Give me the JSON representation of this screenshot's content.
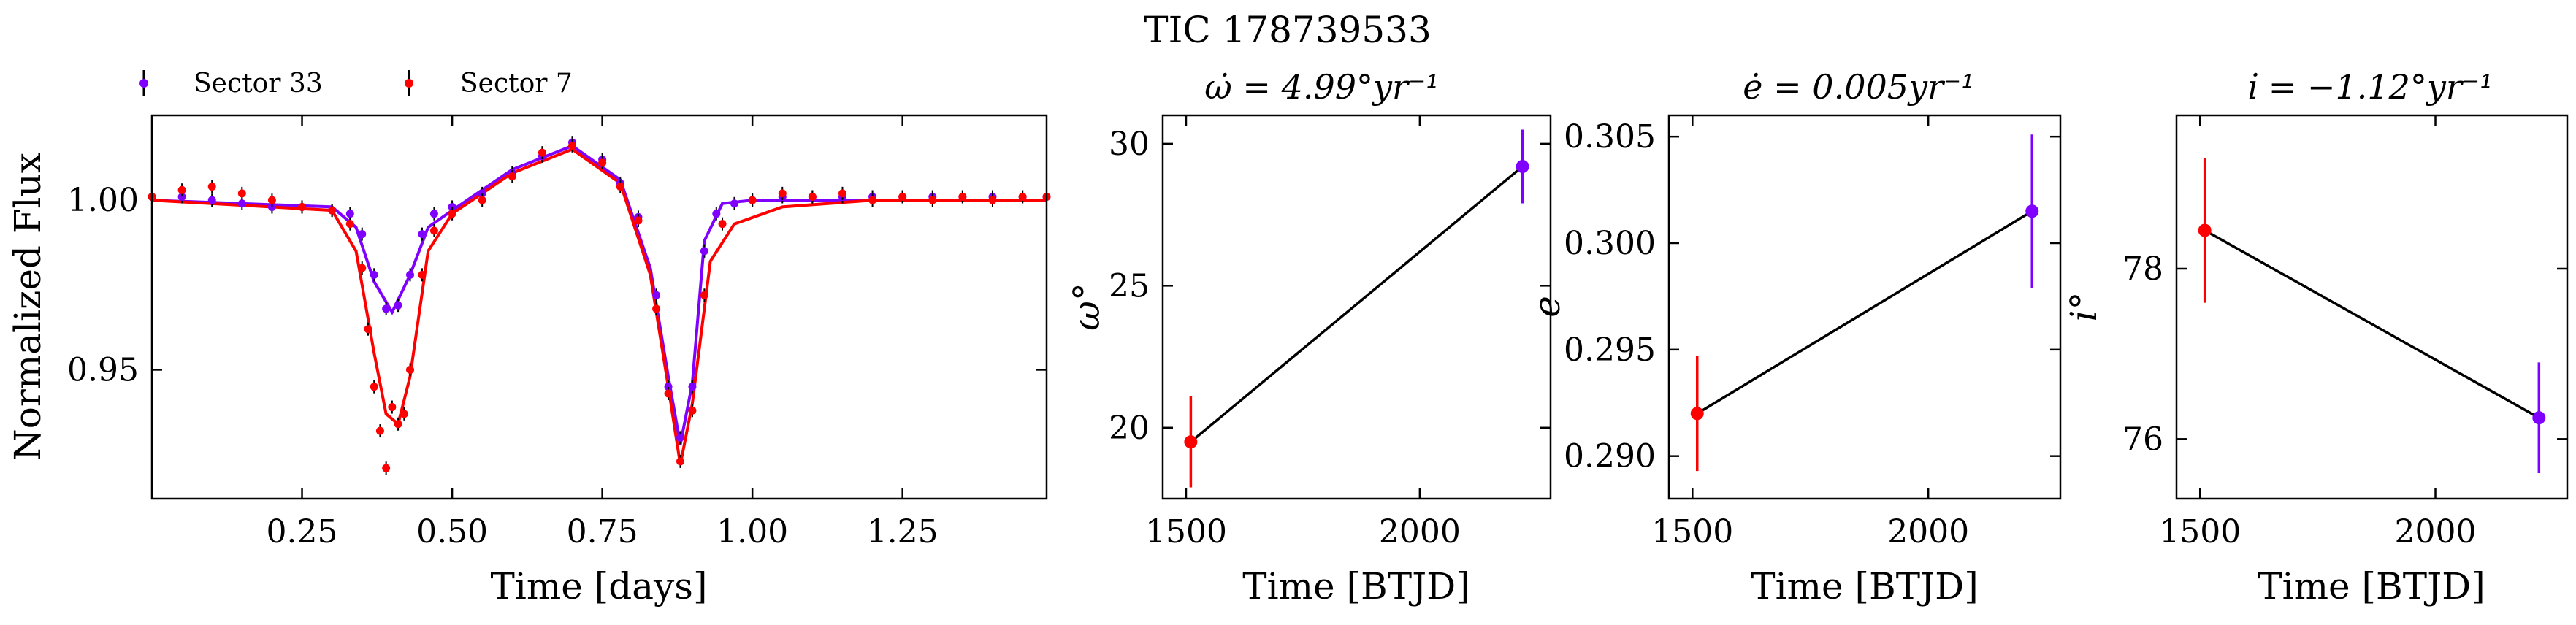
{
  "figure": {
    "title": "TIC 178739533"
  },
  "colors": {
    "sector33": "#7f00ff",
    "sector7": "#ff0000",
    "model_line": "#000000"
  },
  "chart_data": [
    {
      "type": "scatter",
      "title": "",
      "xlabel": "Time [days]",
      "ylabel": "Normalized Flux",
      "xlim": [
        0.0,
        1.49
      ],
      "ylim": [
        0.912,
        1.025
      ],
      "xticks": [
        0.25,
        0.5,
        0.75,
        1.0,
        1.25
      ],
      "xtick_labels": [
        "0.25",
        "0.50",
        "0.75",
        "1.00",
        "1.25"
      ],
      "yticks": [
        0.95,
        1.0
      ],
      "ytick_labels": [
        "0.95",
        "1.00"
      ],
      "legend": {
        "placement": "top-left, outside",
        "entries": [
          "Sector 33",
          "Sector 7"
        ]
      },
      "series": [
        {
          "name": "Sector 33",
          "color": "#7f00ff",
          "phase": [
            0.0,
            0.05,
            0.1,
            0.15,
            0.2,
            0.25,
            0.3,
            0.33,
            0.35,
            0.37,
            0.39,
            0.41,
            0.43,
            0.45,
            0.47,
            0.5,
            0.55,
            0.6,
            0.65,
            0.7,
            0.75,
            0.78,
            0.81,
            0.84,
            0.86,
            0.88,
            0.9,
            0.92,
            0.94,
            0.97,
            1.0,
            1.05,
            1.1,
            1.15,
            1.2,
            1.25,
            1.3,
            1.35,
            1.4,
            1.45,
            1.49
          ],
          "flux": [
            1.001,
            1.001,
            1.0,
            0.999,
            0.998,
            0.998,
            0.997,
            0.996,
            0.99,
            0.978,
            0.968,
            0.969,
            0.978,
            0.99,
            0.996,
            0.998,
            1.002,
            1.008,
            1.013,
            1.017,
            1.012,
            1.005,
            0.995,
            0.972,
            0.945,
            0.93,
            0.945,
            0.985,
            0.996,
            0.999,
            1.0,
            1.001,
            1.001,
            1.001,
            1.001,
            1.001,
            1.001,
            1.001,
            1.001,
            1.001,
            1.001
          ]
        },
        {
          "name": "Sector 7",
          "color": "#ff0000",
          "phase": [
            0.0,
            0.05,
            0.1,
            0.15,
            0.2,
            0.25,
            0.3,
            0.33,
            0.35,
            0.36,
            0.37,
            0.38,
            0.39,
            0.4,
            0.41,
            0.42,
            0.43,
            0.45,
            0.47,
            0.5,
            0.55,
            0.6,
            0.65,
            0.7,
            0.75,
            0.78,
            0.81,
            0.84,
            0.86,
            0.88,
            0.9,
            0.92,
            0.95,
            1.0,
            1.05,
            1.1,
            1.15,
            1.2,
            1.25,
            1.3,
            1.35,
            1.4,
            1.45,
            1.49
          ],
          "flux": [
            1.001,
            1.003,
            1.004,
            1.002,
            1.0,
            0.998,
            0.997,
            0.993,
            0.98,
            0.962,
            0.945,
            0.932,
            0.921,
            0.939,
            0.934,
            0.937,
            0.95,
            0.978,
            0.991,
            0.996,
            1.0,
            1.007,
            1.014,
            1.016,
            1.011,
            1.004,
            0.994,
            0.968,
            0.943,
            0.923,
            0.938,
            0.972,
            0.993,
            1.0,
            1.002,
            1.001,
            1.002,
            1.0,
            1.001,
            1.0,
            1.001,
            1.0,
            1.001,
            1.001
          ]
        }
      ],
      "models": [
        {
          "color": "#7f00ff",
          "phase": [
            0.0,
            0.3,
            0.34,
            0.37,
            0.4,
            0.43,
            0.46,
            0.5,
            0.6,
            0.7,
            0.78,
            0.83,
            0.86,
            0.88,
            0.9,
            0.92,
            0.95,
            1.0,
            1.2,
            1.49
          ],
          "flux": [
            1.0,
            0.998,
            0.992,
            0.976,
            0.967,
            0.978,
            0.992,
            0.997,
            1.009,
            1.016,
            1.006,
            0.98,
            0.948,
            0.928,
            0.946,
            0.988,
            0.999,
            1.0,
            1.0,
            1.0
          ]
        },
        {
          "color": "#ff0000",
          "phase": [
            0.0,
            0.3,
            0.34,
            0.37,
            0.39,
            0.41,
            0.43,
            0.46,
            0.5,
            0.6,
            0.7,
            0.78,
            0.83,
            0.86,
            0.88,
            0.9,
            0.93,
            0.97,
            1.05,
            1.2,
            1.49
          ],
          "flux": [
            1.0,
            0.997,
            0.985,
            0.955,
            0.937,
            0.934,
            0.948,
            0.985,
            0.996,
            1.008,
            1.015,
            1.005,
            0.978,
            0.945,
            0.922,
            0.94,
            0.982,
            0.993,
            0.998,
            1.0,
            1.0
          ]
        }
      ]
    },
    {
      "type": "line",
      "title": "ω̇ = 4.99°yr⁻¹",
      "xlabel": "Time [BTJD]",
      "ylabel": "ω°",
      "xlim": [
        1450,
        2280
      ],
      "ylim": [
        17.5,
        31.0
      ],
      "xticks": [
        1500,
        2000
      ],
      "xtick_labels": [
        "1500",
        "2000"
      ],
      "yticks": [
        20,
        25,
        30
      ],
      "ytick_labels": [
        "20",
        "25",
        "30"
      ],
      "points": [
        {
          "x": 1510,
          "y": 19.5,
          "err": 1.6,
          "color": "#ff0000"
        },
        {
          "x": 2220,
          "y": 29.2,
          "err": 1.3,
          "color": "#7f00ff"
        }
      ]
    },
    {
      "type": "line",
      "title": "ė = 0.005yr⁻¹",
      "xlabel": "Time [BTJD]",
      "ylabel": "e",
      "xlim": [
        1450,
        2280
      ],
      "ylim": [
        0.288,
        0.306
      ],
      "xticks": [
        1500,
        2000
      ],
      "xtick_labels": [
        "1500",
        "2000"
      ],
      "yticks": [
        0.29,
        0.295,
        0.3,
        0.305
      ],
      "ytick_labels": [
        "0.290",
        "0.295",
        "0.300",
        "0.305"
      ],
      "points": [
        {
          "x": 1510,
          "y": 0.292,
          "err": 0.0027,
          "color": "#ff0000"
        },
        {
          "x": 2220,
          "y": 0.3015,
          "err": 0.0036,
          "color": "#7f00ff"
        }
      ]
    },
    {
      "type": "line",
      "title": "i̇ = −1.12°yr⁻¹",
      "xlabel": "Time [BTJD]",
      "ylabel": "i°",
      "xlim": [
        1450,
        2280
      ],
      "ylim": [
        75.3,
        79.8
      ],
      "xticks": [
        1500,
        2000
      ],
      "xtick_labels": [
        "1500",
        "2000"
      ],
      "yticks": [
        76,
        78
      ],
      "ytick_labels": [
        "76",
        "78"
      ],
      "points": [
        {
          "x": 1510,
          "y": 78.45,
          "err": 0.85,
          "color": "#ff0000"
        },
        {
          "x": 2220,
          "y": 76.25,
          "err": 0.65,
          "color": "#7f00ff"
        }
      ]
    }
  ]
}
